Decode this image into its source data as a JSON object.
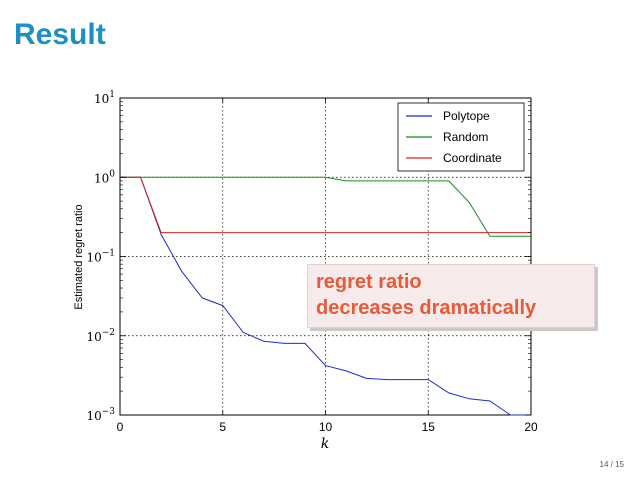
{
  "slide": {
    "title": "Result",
    "page_number": "14 / 15"
  },
  "callout": {
    "line1": "regret ratio",
    "line2": "decreases dramatically",
    "color": "#e85a3a"
  },
  "chart_data": {
    "type": "line",
    "title": "",
    "xlabel": "k",
    "ylabel": "Estimated regret ratio",
    "xlim": [
      0,
      20
    ],
    "ylim": [
      0.001,
      10
    ],
    "yscale": "log",
    "xticks": [
      0,
      5,
      10,
      15,
      20
    ],
    "xtick_labels": [
      "0",
      "5",
      "10",
      "15",
      "20"
    ],
    "yticks": [
      0.001,
      0.01,
      0.1,
      1,
      10
    ],
    "ytick_exponents": [
      "−3",
      "−2",
      "−1",
      "0",
      "1"
    ],
    "ytick_base": "10",
    "grid": true,
    "legend_position": "top-right",
    "series": [
      {
        "name": "Polytope",
        "color": "#1f2bd4",
        "x": [
          0,
          1,
          2,
          3,
          4,
          5,
          6,
          7,
          8,
          9,
          10,
          11,
          12,
          13,
          14,
          15,
          16,
          17,
          18,
          19,
          20
        ],
        "y": [
          1,
          1,
          0.19,
          0.065,
          0.03,
          0.024,
          0.011,
          0.0085,
          0.008,
          0.008,
          0.0042,
          0.0036,
          0.0029,
          0.0028,
          0.0028,
          0.0028,
          0.0019,
          0.0016,
          0.0015,
          0.001,
          0.001
        ]
      },
      {
        "name": "Random",
        "color": "#1c8a1c",
        "x": [
          0,
          1,
          2,
          3,
          4,
          5,
          6,
          7,
          8,
          9,
          10,
          11,
          12,
          13,
          14,
          15,
          16,
          17,
          18,
          19,
          20
        ],
        "y": [
          1,
          1,
          1,
          1,
          1,
          1,
          1,
          1,
          1,
          1,
          1,
          0.9,
          0.9,
          0.9,
          0.9,
          0.9,
          0.9,
          0.48,
          0.18,
          0.18,
          0.18
        ]
      },
      {
        "name": "Coordinate",
        "color": "#e02020",
        "x": [
          0,
          1,
          2,
          3,
          4,
          5,
          6,
          7,
          8,
          9,
          10,
          11,
          12,
          13,
          14,
          15,
          16,
          17,
          18,
          19,
          20
        ],
        "y": [
          1,
          1,
          0.2,
          0.2,
          0.2,
          0.2,
          0.2,
          0.2,
          0.2,
          0.2,
          0.2,
          0.2,
          0.2,
          0.2,
          0.2,
          0.2,
          0.2,
          0.2,
          0.2,
          0.2,
          0.2
        ]
      }
    ]
  }
}
